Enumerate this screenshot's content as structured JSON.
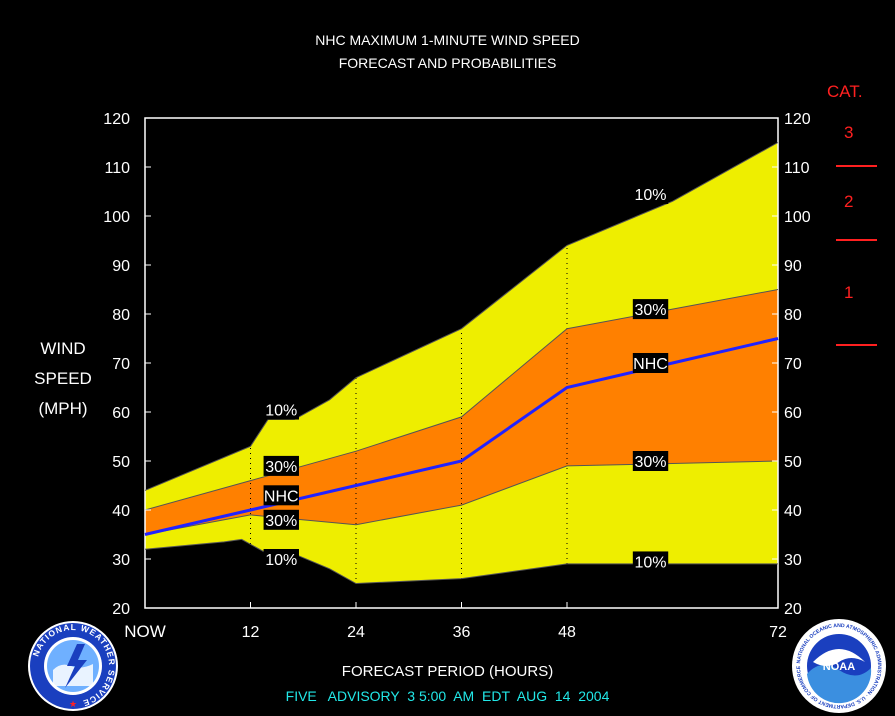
{
  "header": {
    "title_line1": "NHC MAXIMUM 1-MINUTE WIND SPEED",
    "title_line2": "FORECAST AND PROBABILITIES"
  },
  "axis": {
    "ylabel_lines": [
      "WIND",
      "SPEED",
      "(MPH)"
    ],
    "xlabel": "FORECAST PERIOD (HOURS)"
  },
  "footer": {
    "advisory": "FIVE   ADVISORY  3 5:00  AM  EDT  AUG  14  2004"
  },
  "categories": {
    "title": "CAT.",
    "labels": [
      "3",
      "2",
      "1"
    ],
    "thresholds_mph": [
      111,
      96,
      74
    ]
  },
  "logos": {
    "left_name": "NATIONAL WEATHER SERVICE",
    "right_name": "NOAA",
    "right_ring_text": "NATIONAL OCEANIC AND ATMOSPHERIC ADMINISTRATION · U.S. DEPARTMENT OF COMMERCE"
  },
  "colors": {
    "band_10_90": "#eeee00",
    "band_30_70": "#ff8000",
    "forecast_line": "#2222ff",
    "category_marks": "#ff2020",
    "advisory_text": "#22e8e8"
  },
  "chart_data": {
    "type": "area",
    "x_ticks": [
      {
        "value": 0,
        "label": "NOW"
      },
      {
        "value": 12,
        "label": "12"
      },
      {
        "value": 24,
        "label": "24"
      },
      {
        "value": 36,
        "label": "36"
      },
      {
        "value": 48,
        "label": "48"
      },
      {
        "value": 72,
        "label": "72"
      }
    ],
    "y_ticks": [
      20,
      30,
      40,
      50,
      60,
      70,
      80,
      90,
      100,
      110,
      120
    ],
    "xlim": [
      0,
      72
    ],
    "ylim": [
      20,
      120
    ],
    "gridlines_x": [
      12,
      24,
      36,
      48
    ],
    "bands": {
      "p10_upper": {
        "x": [
          0,
          12,
          14,
          17,
          21,
          24,
          36,
          48,
          60,
          72
        ],
        "y": [
          44,
          53,
          58.5,
          58.5,
          62.5,
          67,
          77,
          94,
          103,
          115
        ]
      },
      "p30_upper": {
        "x": [
          0,
          12,
          24,
          36,
          48,
          60,
          72
        ],
        "y": [
          40,
          46,
          52,
          59,
          77,
          81,
          85
        ]
      },
      "p30_lower": {
        "x": [
          0,
          12,
          24,
          36,
          48,
          60,
          72
        ],
        "y": [
          35,
          39,
          37,
          41,
          49,
          49.5,
          50
        ]
      },
      "p10_lower": {
        "x": [
          0,
          9,
          11,
          14,
          17,
          21,
          24,
          36,
          48,
          60,
          72
        ],
        "y": [
          32,
          33.5,
          34,
          31,
          31,
          28,
          25,
          26,
          29,
          29,
          29
        ]
      }
    },
    "series": [
      {
        "name": "NHC",
        "x": [
          0,
          12,
          24,
          36,
          48,
          60,
          72
        ],
        "y": [
          35,
          40,
          45,
          50,
          65,
          70,
          75
        ]
      }
    ],
    "annotations": [
      {
        "text": "10%",
        "x": 15.5,
        "y": 60.5
      },
      {
        "text": "30%",
        "x": 15.5,
        "y": 49
      },
      {
        "text": "NHC",
        "x": 15.5,
        "y": 43
      },
      {
        "text": "30%",
        "x": 15.5,
        "y": 38
      },
      {
        "text": "10%",
        "x": 15.5,
        "y": 30
      },
      {
        "text": "10%",
        "x": 57.5,
        "y": 104.5
      },
      {
        "text": "30%",
        "x": 57.5,
        "y": 81
      },
      {
        "text": "NHC",
        "x": 57.5,
        "y": 70
      },
      {
        "text": "30%",
        "x": 57.5,
        "y": 50
      },
      {
        "text": "10%",
        "x": 57.5,
        "y": 29.5
      }
    ]
  }
}
